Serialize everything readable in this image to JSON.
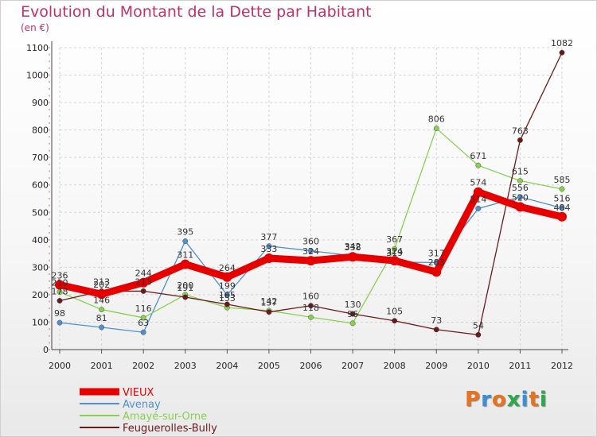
{
  "header": {
    "title": "Evolution du Montant de la Dette par Habitant",
    "subtitle": "(en €)"
  },
  "logo": {
    "text": "Proxiti",
    "colors": [
      "#e8731c",
      "#3a8fd6",
      "#e8731c",
      "#2aa84a",
      "#3a8fd6",
      "#e8731c",
      "#2aa84a"
    ]
  },
  "chart_data": {
    "type": "line",
    "title": "Evolution du Montant de la Dette par Habitant",
    "subtitle": "(en €)",
    "xlabel": "",
    "ylabel": "",
    "categories": [
      "2000",
      "2001",
      "2002",
      "2003",
      "2004",
      "2005",
      "2006",
      "2007",
      "2008",
      "2009",
      "2010",
      "2011",
      "2012"
    ],
    "ylim": [
      0,
      1100
    ],
    "yticks": [
      0,
      100,
      200,
      300,
      400,
      500,
      600,
      700,
      800,
      900,
      1000,
      1100
    ],
    "grid": true,
    "legend_position": "bottom-left",
    "series": [
      {
        "name": "VIEUX",
        "color": "#e60000",
        "values": [
          236,
          202,
          244,
          311,
          264,
          333,
          324,
          338,
          324,
          283,
          574,
          520,
          484
        ]
      },
      {
        "name": "Avenay",
        "color": "#5090cc",
        "values": [
          98,
          81,
          63,
          395,
          199,
          377,
          360,
          342,
          319,
          317,
          514,
          556,
          516
        ]
      },
      {
        "name": "Amayé-sur-Orne",
        "color": "#88d050",
        "values": [
          210,
          146,
          116,
          200,
          153,
          142,
          118,
          96,
          367,
          806,
          671,
          615,
          585
        ]
      },
      {
        "name": "Feuguerolles-Bully",
        "color": "#6a1a1a",
        "values": [
          178,
          213,
          213,
          191,
          165,
          137,
          160,
          130,
          105,
          73,
          54,
          763,
          1082
        ]
      }
    ]
  }
}
